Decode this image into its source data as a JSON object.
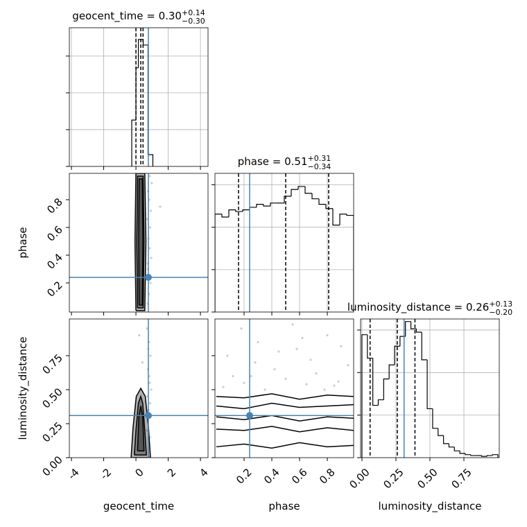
{
  "chart_data": [
    {
      "type": "histogram",
      "title": "geocent_time = 0.30",
      "title_sup": "+0.14",
      "title_sub": "−0.30",
      "bins": [
        -0.26,
        0.0,
        0.15,
        0.45,
        0.75,
        1.05
      ],
      "counts": [
        1.26,
        2.68,
        3.45,
        3.3,
        0.32
      ],
      "quantiles": [
        0.0,
        0.3,
        0.44
      ],
      "truth": 0.77,
      "color": "#000000",
      "truth_color": "#4682b4",
      "xlim": [
        -4.13,
        4.47
      ],
      "xticks": [
        -4,
        -2,
        0,
        2,
        4
      ],
      "ylim": [
        0,
        3.77
      ],
      "yticks": [
        0,
        1,
        2,
        3
      ],
      "grid": true
    },
    {
      "type": "histogram",
      "title": "phase = 0.51",
      "title_sup": "+0.31",
      "title_sub": "−0.34",
      "bins": [
        -0.01,
        0.04,
        0.09,
        0.14,
        0.19,
        0.24,
        0.29,
        0.34,
        0.39,
        0.44,
        0.49,
        0.54,
        0.59,
        0.64,
        0.69,
        0.74,
        0.79,
        0.84,
        0.89,
        0.94,
        0.99
      ],
      "counts": [
        2.31,
        2.24,
        2.41,
        2.37,
        2.41,
        2.47,
        2.54,
        2.5,
        2.57,
        2.57,
        2.73,
        2.89,
        2.96,
        2.8,
        2.67,
        2.54,
        2.44,
        2.05,
        2.31,
        2.28
      ],
      "quantiles": [
        0.16,
        0.5,
        0.81
      ],
      "truth": 0.24,
      "color": "#000000",
      "truth_color": "#4682b4",
      "xlim": [
        -0.01,
        0.99
      ],
      "xticks": [
        0.2,
        0.4,
        0.6,
        0.8
      ],
      "ylim": [
        0,
        3.27
      ],
      "yticks": [
        0,
        1,
        2,
        3
      ],
      "grid": true
    },
    {
      "type": "histogram",
      "title": "luminosity_distance = 0.26",
      "title_sup": "+0.13",
      "title_sub": "−0.20",
      "bins": [
        0.0,
        0.04,
        0.08,
        0.12,
        0.16,
        0.2,
        0.24,
        0.28,
        0.32,
        0.36,
        0.4,
        0.44,
        0.48,
        0.52,
        0.56,
        0.6,
        0.64,
        0.68,
        0.72,
        0.76,
        0.8,
        0.84,
        0.88,
        0.92,
        0.96,
        1.0
      ],
      "counts": [
        2.89,
        2.34,
        1.23,
        1.36,
        1.85,
        2.18,
        2.62,
        2.85,
        3.2,
        3.03,
        2.95,
        2.3,
        1.15,
        0.69,
        0.52,
        0.33,
        0.25,
        0.16,
        0.1,
        0.07,
        0.05,
        0.05,
        0.03,
        0.05,
        0.07
      ],
      "quantiles": [
        0.06,
        0.26,
        0.39
      ],
      "truth": 0.31,
      "color": "#000000",
      "truth_color": "#4682b4",
      "xlim": [
        -0.01,
        1.01
      ],
      "xticks": [
        {
          "value": 0,
          "label": "0.00"
        },
        {
          "value": 0.25,
          "label": "0.25"
        },
        {
          "value": 0.5,
          "label": "0.50"
        },
        {
          "value": 0.75,
          "label": "0.75"
        }
      ],
      "ylim": [
        0,
        3.26
      ],
      "yticks": [
        0,
        1,
        2,
        3
      ],
      "grid": true,
      "xlabel": "luminosity_distance"
    },
    {
      "type": "scatter",
      "ylabel": "phase",
      "color": "#000000",
      "truth_color": "#4682b4",
      "truth": [
        0.77,
        0.24
      ],
      "x": [
        0.72,
        0.8,
        0.9,
        0.75,
        0.95,
        0.85,
        0.78,
        0.88,
        0.7,
        0.92,
        1.5,
        0.82,
        0.76,
        0.98,
        0.86,
        0.74
      ],
      "y": [
        0.05,
        0.12,
        0.2,
        0.3,
        0.38,
        0.45,
        0.52,
        0.6,
        0.66,
        0.72,
        0.75,
        0.8,
        0.86,
        0.92,
        0.97,
        0.34
      ],
      "contours": [
        {
          "x": [
            0.0,
            0.55,
            0.62,
            0.55,
            0.0,
            -0.06,
            0.0
          ],
          "y": [
            0.0,
            0.0,
            0.5,
            0.99,
            0.99,
            0.5,
            0.0
          ]
        },
        {
          "x": [
            0.1,
            0.45,
            0.5,
            0.45,
            0.1,
            0.05,
            0.1
          ],
          "y": [
            0.02,
            0.02,
            0.5,
            0.97,
            0.97,
            0.5,
            0.02
          ]
        },
        {
          "x": [
            0.2,
            0.4,
            0.43,
            0.4,
            0.2,
            0.17,
            0.2
          ],
          "y": [
            0.04,
            0.04,
            0.5,
            0.95,
            0.95,
            0.5,
            0.04
          ]
        }
      ],
      "xlim": [
        -4.13,
        4.47
      ],
      "xticks": [
        -4,
        -2,
        0,
        2,
        4
      ],
      "ylim": [
        -0.01,
        0.99
      ],
      "yticks": [
        0.2,
        0.4,
        0.6,
        0.8
      ]
    },
    {
      "type": "scatter",
      "xlabel": "geocent_time",
      "ylabel": "luminosity_distance",
      "color": "#000000",
      "truth_color": "#4682b4",
      "truth": [
        0.77,
        0.31
      ],
      "x": [
        0.7,
        0.8,
        0.9,
        0.75,
        0.85,
        0.95,
        0.72,
        0.88,
        0.78,
        0.82,
        0.92,
        0.7,
        0.2,
        0.4,
        0.86,
        0.76
      ],
      "y": [
        0.95,
        0.85,
        0.75,
        0.65,
        0.55,
        0.5,
        0.45,
        0.4,
        0.35,
        0.6,
        0.3,
        0.2,
        0.9,
        0.7,
        0.15,
        0.8
      ],
      "contours": [
        {
          "x": [
            -0.3,
            0.3,
            0.9,
            0.78,
            0.58,
            0.3,
            0.02,
            -0.18,
            -0.3
          ],
          "y": [
            0.0,
            0.0,
            0.0,
            0.22,
            0.45,
            0.51,
            0.45,
            0.22,
            0.0
          ]
        },
        {
          "x": [
            -0.1,
            0.3,
            0.65,
            0.55,
            0.42,
            0.3,
            0.15,
            0.0,
            -0.1
          ],
          "y": [
            0.02,
            0.02,
            0.02,
            0.2,
            0.4,
            0.45,
            0.4,
            0.2,
            0.02
          ]
        },
        {
          "x": [
            0.1,
            0.3,
            0.5,
            0.42,
            0.3,
            0.18,
            0.1
          ],
          "y": [
            0.05,
            0.05,
            0.05,
            0.3,
            0.38,
            0.3,
            0.05
          ]
        }
      ],
      "xlim": [
        -4.13,
        4.47
      ],
      "xticks": [
        -4,
        -2,
        0,
        2,
        4
      ],
      "ylim": [
        0,
        1.02
      ],
      "yticks": [
        {
          "value": 0,
          "label": "0.00"
        },
        {
          "value": 0.25,
          "label": "0.25"
        },
        {
          "value": 0.5,
          "label": "0.50"
        },
        {
          "value": 0.75,
          "label": "0.75"
        }
      ]
    },
    {
      "type": "scatter",
      "xlabel": "phase",
      "color": "#000000",
      "truth_color": "#4682b4",
      "truth": [
        0.24,
        0.31
      ],
      "x": [
        0.05,
        0.12,
        0.2,
        0.28,
        0.35,
        0.42,
        0.5,
        0.58,
        0.65,
        0.72,
        0.8,
        0.88,
        0.95,
        0.08,
        0.18,
        0.3,
        0.45,
        0.55,
        0.68,
        0.78,
        0.9,
        0.25,
        0.62,
        0.85
      ],
      "y": [
        0.52,
        0.6,
        0.55,
        0.7,
        0.5,
        0.65,
        0.58,
        0.8,
        0.54,
        0.62,
        0.9,
        0.56,
        0.68,
        0.75,
        0.95,
        0.85,
        0.78,
        0.98,
        0.72,
        0.5,
        0.82,
        0.6,
        0.88,
        0.53
      ],
      "contours": [
        {
          "x": [
            0.0,
            0.2,
            0.4,
            0.6,
            0.8,
            0.99
          ],
          "y": [
            0.45,
            0.44,
            0.47,
            0.43,
            0.46,
            0.45
          ]
        },
        {
          "x": [
            0.0,
            0.2,
            0.4,
            0.6,
            0.8,
            0.99
          ],
          "y": [
            0.38,
            0.36,
            0.4,
            0.37,
            0.38,
            0.39
          ]
        },
        {
          "x": [
            0.0,
            0.2,
            0.4,
            0.6,
            0.8,
            0.99
          ],
          "y": [
            0.3,
            0.28,
            0.31,
            0.27,
            0.3,
            0.29
          ]
        },
        {
          "x": [
            0.0,
            0.2,
            0.4,
            0.6,
            0.8,
            0.99
          ],
          "y": [
            0.21,
            0.2,
            0.23,
            0.19,
            0.22,
            0.2
          ]
        },
        {
          "x": [
            0.0,
            0.2,
            0.4,
            0.6,
            0.8,
            0.99
          ],
          "y": [
            0.08,
            0.1,
            0.07,
            0.11,
            0.08,
            0.09
          ]
        }
      ],
      "xlim": [
        -0.01,
        0.99
      ],
      "xticks": [
        0.2,
        0.4,
        0.6,
        0.8
      ],
      "ylim": [
        0,
        1.02
      ],
      "yticks": [
        {
          "value": 0,
          "label": "0.00"
        },
        {
          "value": 0.25,
          "label": "0.25"
        },
        {
          "value": 0.5,
          "label": "0.50"
        },
        {
          "value": 0.75,
          "label": "0.75"
        }
      ]
    }
  ]
}
